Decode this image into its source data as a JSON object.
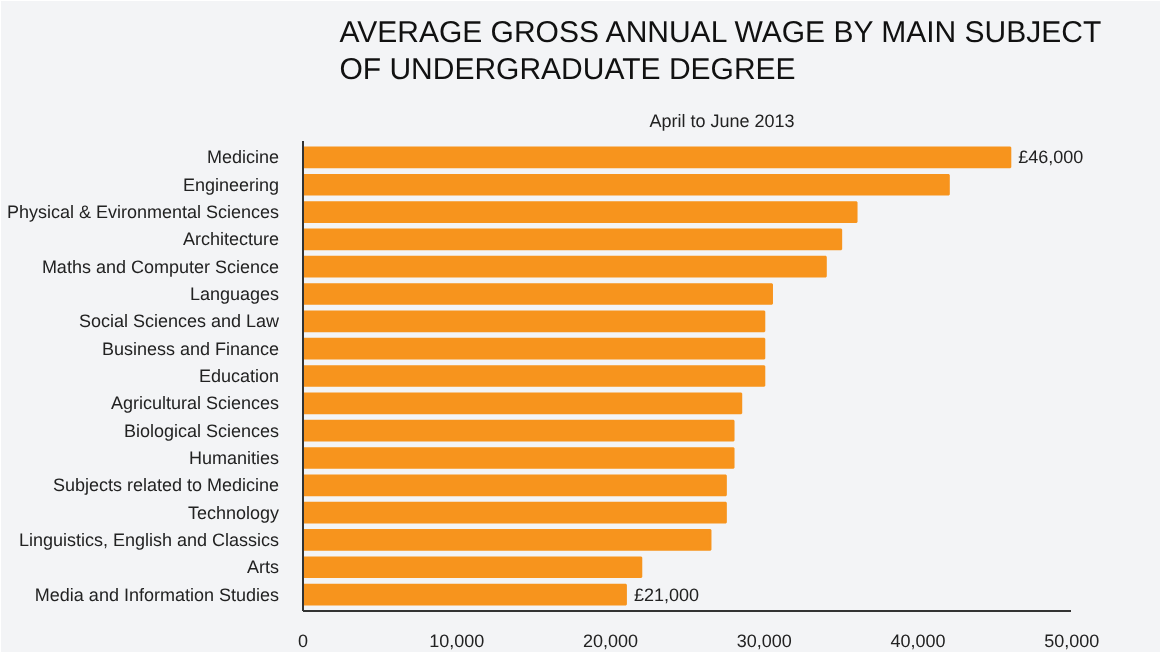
{
  "chart_data": {
    "type": "bar",
    "orientation": "horizontal",
    "title": "AVERAGE GROSS ANNUAL WAGE BY MAIN SUBJECT\nOF UNDERGRADUATE DEGREE",
    "subtitle": "April to June 2013",
    "categories": [
      "Medicine",
      "Engineering",
      "Physical & Evironmental Sciences",
      "Architecture",
      "Maths and Computer Science",
      "Languages",
      "Social Sciences and Law",
      "Business and Finance",
      "Education",
      "Agricultural Sciences",
      "Biological Sciences",
      "Humanities",
      "Subjects related to Medicine",
      "Technology",
      "Linguistics, English and Classics",
      "Arts",
      "Media and Information Studies"
    ],
    "values": [
      46000,
      42000,
      36000,
      35000,
      34000,
      30500,
      30000,
      30000,
      30000,
      28500,
      28000,
      28000,
      27500,
      27500,
      26500,
      22000,
      21000
    ],
    "value_labels": [
      "£46,000",
      null,
      null,
      null,
      null,
      null,
      null,
      null,
      null,
      null,
      null,
      null,
      null,
      null,
      null,
      null,
      "£21,000"
    ],
    "color": "#f7941d",
    "xlim": [
      0,
      50000
    ],
    "xticks": [
      0,
      {
        "value": 10000,
        "label": "10,000"
      },
      {
        "value": 20000,
        "label": "20,000"
      },
      {
        "value": 30000,
        "label": "30,000"
      },
      {
        "value": 40000,
        "label": "40,000"
      },
      {
        "value": 50000,
        "label": "50,000"
      }
    ],
    "grid": false
  }
}
